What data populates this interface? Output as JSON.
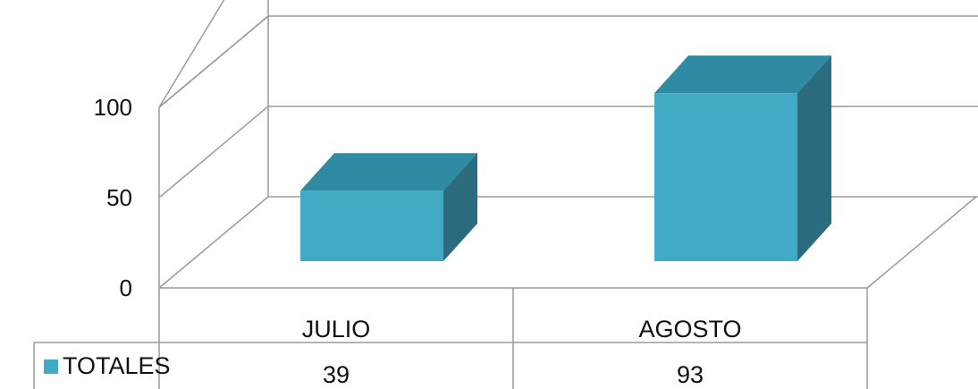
{
  "chart_data": {
    "type": "bar",
    "three_d": true,
    "categories": [
      "JULIO",
      "AGOSTO"
    ],
    "series": [
      {
        "name": "TOTALES",
        "values": [
          39,
          93
        ],
        "color": "#41abc6",
        "top_color": "#2f8aa3",
        "side_color": "#2a6b80"
      }
    ],
    "yticks": [
      0,
      50,
      100
    ],
    "ylim": [
      0,
      100
    ],
    "grid": true,
    "data_table": true,
    "title": "",
    "xlabel": "",
    "ylabel": ""
  }
}
